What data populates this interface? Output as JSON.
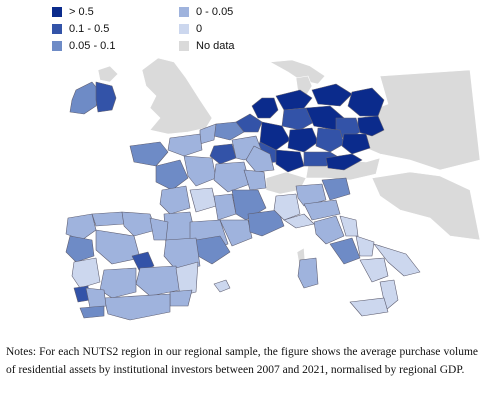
{
  "legend": {
    "items": [
      {
        "label": "> 0.5",
        "color": "#0b2b8c"
      },
      {
        "label": "0.1 - 0.5",
        "color": "#3353a8"
      },
      {
        "label": "0.05 - 0.1",
        "color": "#6e8bc6"
      },
      {
        "label": "0 - 0.05",
        "color": "#9fb3dd"
      },
      {
        "label": "0",
        "color": "#ccd7ee"
      },
      {
        "label": "No data",
        "color": "#dadada"
      }
    ]
  },
  "map": {
    "sea_color": "#ffffff",
    "nodata_color": "#dadada",
    "border_color": "#5f5f72"
  },
  "notes": {
    "text": "Notes: For each NUTS2 region in our regional sample, the figure shows the average purchase volume of residential assets by institutional investors between 2007 and 2021, normalised by regional GDP."
  }
}
